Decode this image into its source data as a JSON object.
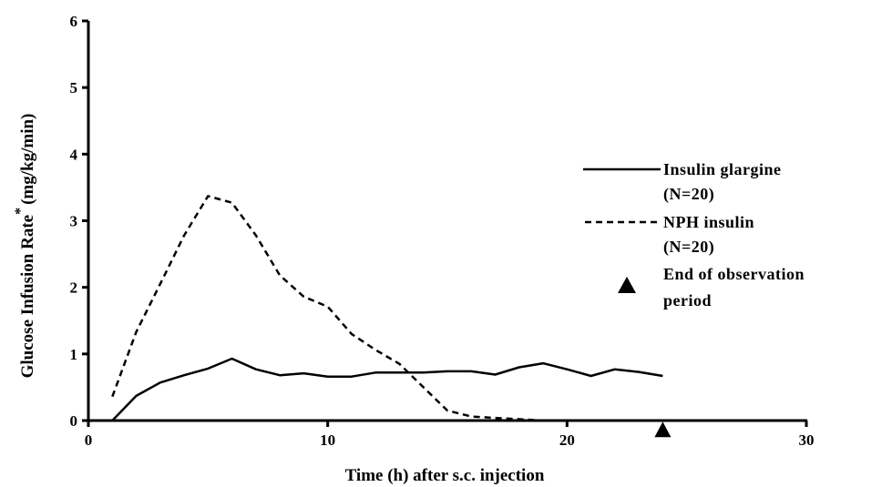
{
  "chart_data": {
    "type": "line",
    "title": "",
    "xlabel": "Time (h) after s.c. injection",
    "ylabel": "Glucose Infusion Rate",
    "ylabel_marker": "*",
    "ylabel_unit": "(mg/kg/min)",
    "xlim": [
      0,
      30
    ],
    "ylim": [
      0,
      6
    ],
    "x_ticks": [
      "0",
      "10",
      "20",
      "30"
    ],
    "y_ticks": [
      "0",
      "1",
      "2",
      "3",
      "4",
      "5",
      "6"
    ],
    "grid": false,
    "legend_position": "right",
    "series": [
      {
        "name": "Insulin glargine (N=20)",
        "style": "solid",
        "x": [
          1,
          2,
          3,
          4,
          5,
          6,
          7,
          8,
          9,
          10,
          11,
          12,
          13,
          14,
          15,
          16,
          17,
          18,
          19,
          20,
          21,
          22,
          23,
          24
        ],
        "values": [
          0.0,
          0.37,
          0.57,
          0.68,
          0.78,
          0.93,
          0.77,
          0.68,
          0.71,
          0.66,
          0.66,
          0.72,
          0.72,
          0.72,
          0.74,
          0.74,
          0.69,
          0.8,
          0.86,
          0.77,
          0.67,
          0.77,
          0.73,
          0.67
        ]
      },
      {
        "name": "NPH insulin (N=20)",
        "style": "dashed",
        "x": [
          1,
          2,
          3,
          4,
          5,
          6,
          7,
          8,
          9,
          10,
          11,
          12,
          13,
          14,
          15,
          16,
          17,
          18,
          19,
          20
        ],
        "values": [
          0.36,
          1.33,
          2.05,
          2.78,
          3.37,
          3.27,
          2.78,
          2.18,
          1.86,
          1.71,
          1.3,
          1.06,
          0.85,
          0.5,
          0.15,
          0.06,
          0.04,
          0.02,
          0.0,
          0.0
        ]
      }
    ],
    "markers": [
      {
        "name": "End of observation period",
        "shape": "triangle",
        "x": 24,
        "y": -0.14
      }
    ],
    "legend": [
      {
        "line1": "Insulin glargine",
        "line2": "(N=20)",
        "style": "solid"
      },
      {
        "line1": "NPH insulin",
        "line2": "(N=20)",
        "style": "dashed"
      },
      {
        "line1": "End of observation",
        "line2": "period",
        "style": "triangle"
      }
    ]
  }
}
